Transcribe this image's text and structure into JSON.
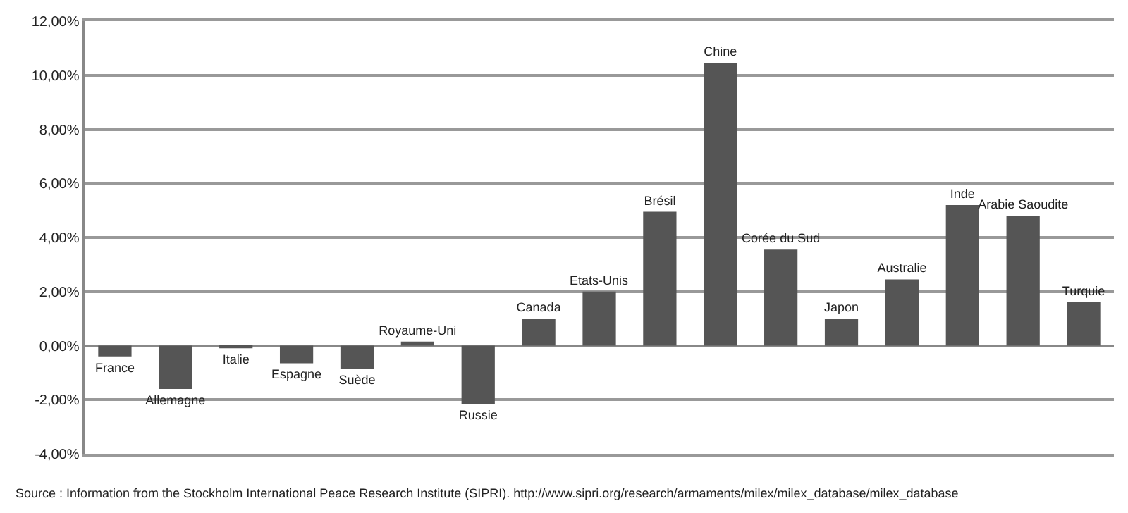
{
  "chart_data": {
    "type": "bar",
    "categories": [
      "France",
      "Allemagne",
      "Italie",
      "Espagne",
      "Suède",
      "Royaume-Uni",
      "Russie",
      "Canada",
      "Etats-Unis",
      "Brésil",
      "Chine",
      "Corée du Sud",
      "Japon",
      "Australie",
      "Inde",
      "Arabie Saoudite",
      "Turquie"
    ],
    "values": [
      -0.4,
      -1.6,
      -0.1,
      -0.65,
      -0.85,
      0.15,
      -2.15,
      1.0,
      2.0,
      4.95,
      10.45,
      3.55,
      1.0,
      2.45,
      5.2,
      4.8,
      1.6
    ],
    "color": "#555555",
    "ylim": [
      -4,
      12
    ],
    "yticks": [
      {
        "value": -4,
        "label": "-4,00%"
      },
      {
        "value": -2,
        "label": "-2,00%"
      },
      {
        "value": 0,
        "label": "0,00%"
      },
      {
        "value": 2,
        "label": "2,00%"
      },
      {
        "value": 4,
        "label": "4,00%"
      },
      {
        "value": 6,
        "label": "6,00%"
      },
      {
        "value": 8,
        "label": "8,00%"
      },
      {
        "value": 10,
        "label": "10,00%"
      },
      {
        "value": 12,
        "label": "12,00%"
      }
    ],
    "grid": "y",
    "legend": false,
    "annotations": [
      "Source : Information from the Stockholm International Peace Research Institute (SIPRI). http://www.sipri.org/research/armaments/milex/milex_database/milex_database"
    ]
  }
}
